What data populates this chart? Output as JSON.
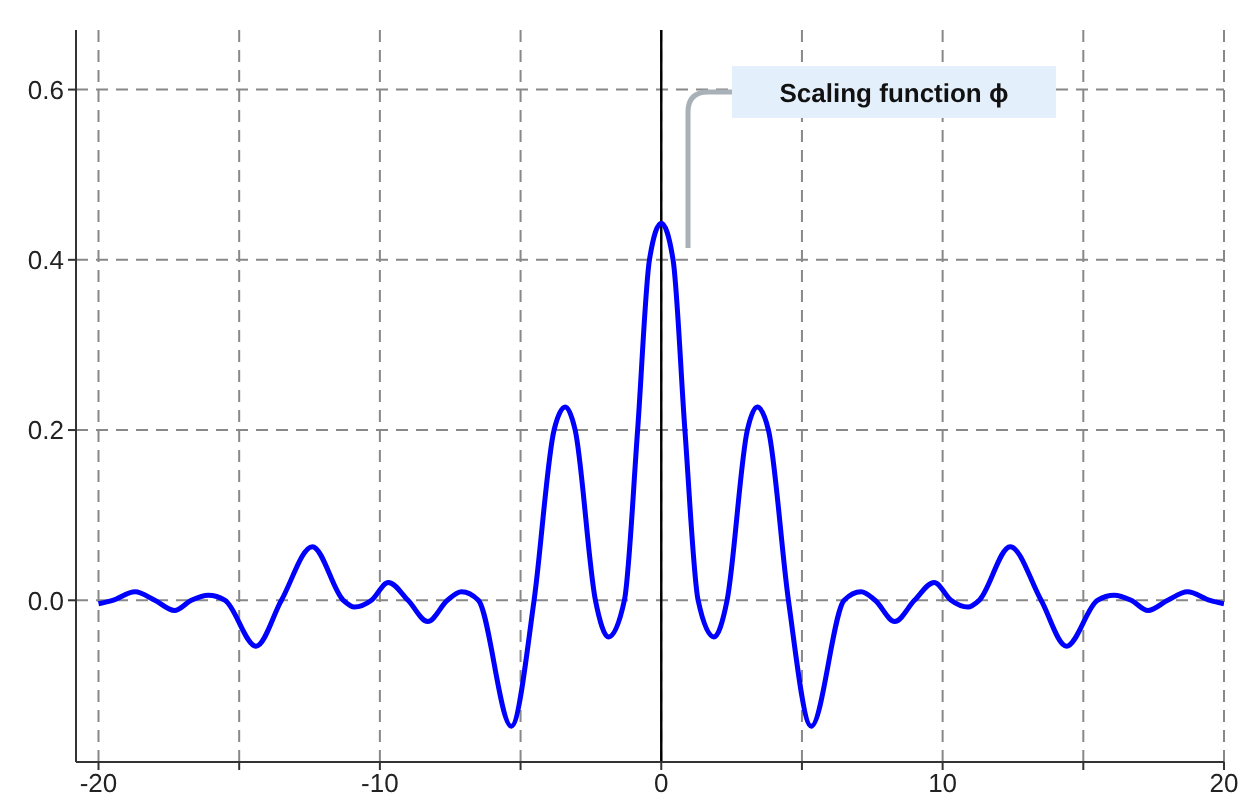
{
  "chart_data": {
    "type": "line",
    "x": [
      -20,
      -19.5,
      -18.7,
      -18,
      -17.3,
      -16.7,
      -16.1,
      -15.5,
      -14.4,
      -13.5,
      -12.4,
      -11.3,
      -10.9,
      -10.3,
      -9.7,
      -9,
      -8.3,
      -7.6,
      -7.1,
      -6.5,
      -5.33,
      -4.52,
      -3.81,
      -3.41,
      -3.06,
      -2.34,
      -1.87,
      -1.31,
      -0.84,
      -0.42,
      0,
      0.42,
      0.84,
      1.31,
      1.87,
      2.34,
      3.06,
      3.41,
      3.81,
      4.52,
      5.33,
      6.5,
      7.1,
      7.6,
      8.3,
      9,
      9.7,
      10.3,
      10.9,
      11.3,
      12.4,
      13.5,
      14.4,
      15.5,
      16.1,
      16.7,
      17.3,
      18,
      18.7,
      19.5,
      20
    ],
    "series": [
      {
        "color": "#0000ff",
        "values": [
          -0.004,
          0,
          0.01,
          0,
          -0.012,
          0,
          0.006,
          0,
          -0.054,
          0,
          0.063,
          0,
          -0.008,
          0,
          0.021,
          0,
          -0.025,
          0,
          0.01,
          0,
          -0.148,
          0,
          0.2,
          0.227,
          0.2,
          0,
          -0.043,
          0,
          0.2,
          0.4,
          0.443,
          0.4,
          0.2,
          0,
          -0.043,
          0,
          0.2,
          0.227,
          0.2,
          0,
          -0.148,
          0,
          0.01,
          0,
          -0.025,
          0,
          0.021,
          0,
          -0.008,
          0,
          0.063,
          0,
          -0.054,
          0,
          0.006,
          0,
          -0.012,
          0,
          0.01,
          0,
          -0.004
        ]
      }
    ],
    "xlim": [
      -20.8,
      20
    ],
    "ylim": [
      -0.19,
      0.67
    ],
    "xticks": [
      -20,
      {
        "value": -15,
        "label": null
      },
      -10,
      {
        "value": -5,
        "label": null
      },
      0,
      {
        "value": 5,
        "label": null
      },
      10,
      {
        "value": 15,
        "label": null
      },
      20
    ],
    "yticks": [
      {
        "value": 0,
        "label": "0.0"
      },
      0.2,
      0.4,
      0.6
    ],
    "grid": true,
    "marker": "none",
    "line_style": "solid",
    "ref_lines": [
      {
        "axis": "x",
        "value": 0,
        "color": "#000000"
      }
    ],
    "annotations": [
      "Scaling function ϕ"
    ]
  }
}
